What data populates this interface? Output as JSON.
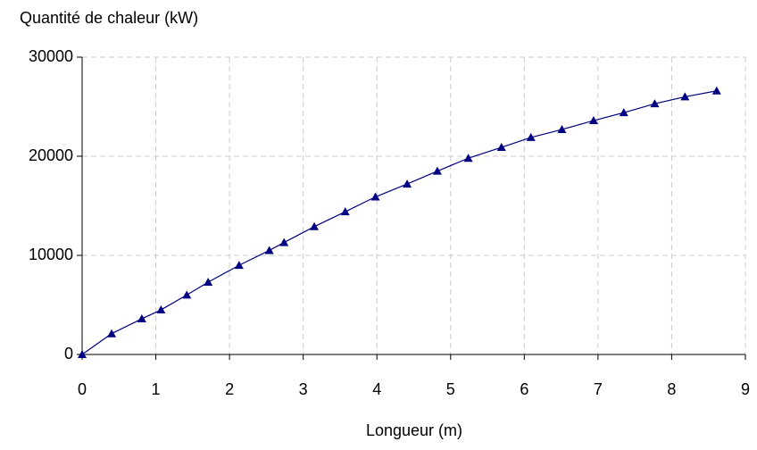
{
  "chart_data": {
    "type": "line",
    "x_label": "Longueur (m)",
    "y_label": "Quantité de chaleur (kW)",
    "x": [
      0,
      0.4,
      0.81,
      1.07,
      1.42,
      1.71,
      2.13,
      2.54,
      2.74,
      3.15,
      3.57,
      3.98,
      4.41,
      4.82,
      5.24,
      5.69,
      6.09,
      6.51,
      6.94,
      7.35,
      7.77,
      8.18,
      8.61
    ],
    "series": [
      {
        "color": "#000080",
        "marker": "triangle",
        "values": [
          0,
          2100,
          3600,
          4500,
          6000,
          7300,
          9000,
          10500,
          11300,
          12900,
          14400,
          15900,
          17200,
          18500,
          19800,
          20900,
          21900,
          22700,
          23600,
          24400,
          25300,
          26000,
          26600
        ]
      }
    ],
    "xlim": [
      0,
      9
    ],
    "xticks": [
      0,
      1,
      2,
      3,
      4,
      5,
      6,
      7,
      8,
      9
    ],
    "ylim": [
      0,
      30000
    ],
    "yticks": [
      0,
      10000,
      20000,
      30000
    ],
    "grid": true
  }
}
